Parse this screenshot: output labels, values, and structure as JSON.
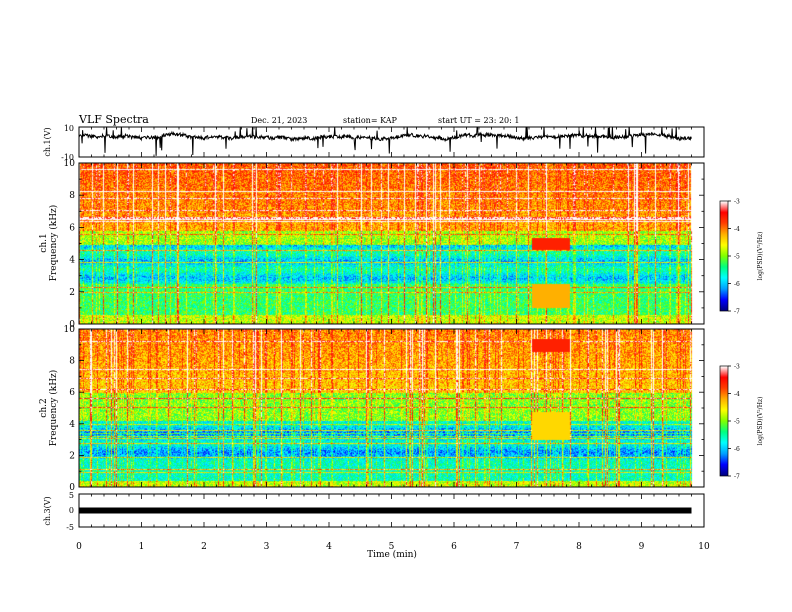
{
  "header": {
    "title": "VLF Spectra",
    "date": "Dec. 21, 2023",
    "station": "station= KAP",
    "start_time": "start  UT =   23: 20: 1"
  },
  "chart_data": [
    {
      "type": "line",
      "ylabel": "ch.1(V)",
      "ylim": [
        -10,
        10
      ],
      "yticks": [
        "10",
        "-10"
      ],
      "xlim": [
        0,
        10
      ],
      "x_extent_min": 9.8,
      "trace_level": 3.5
    },
    {
      "type": "heatmap",
      "ylabel_top": "ch.1",
      "ylabel": "Frequency (kHz)",
      "ylim": [
        0,
        10
      ],
      "yticks": [
        "0",
        "2",
        "4",
        "6",
        "8",
        "10"
      ],
      "xlim": [
        0,
        10
      ],
      "data_extent_min": 9.8,
      "disturbance_window_min": [
        7.25,
        7.85
      ]
    },
    {
      "type": "heatmap",
      "ylabel_top": "ch.2",
      "ylabel": "Frequency (kHz)",
      "ylim": [
        0,
        10
      ],
      "yticks": [
        "0",
        "2",
        "4",
        "6",
        "8",
        "10"
      ],
      "xlim": [
        0,
        10
      ],
      "data_extent_min": 9.8,
      "disturbance_window_min": [
        7.25,
        7.85
      ]
    },
    {
      "type": "line",
      "ylabel": "ch.3(V)",
      "ylim": [
        -5,
        5
      ],
      "yticks": [
        "5",
        "0",
        "-5"
      ],
      "xlim": [
        0,
        10
      ],
      "trace_level": 0
    }
  ],
  "xaxis": {
    "label": "Time (min)",
    "ticks": [
      "0",
      "1",
      "2",
      "3",
      "4",
      "5",
      "6",
      "7",
      "8",
      "9",
      "10"
    ]
  },
  "colorbars": [
    {
      "label": "log(PSD)(V²/Hz)",
      "ticks": [
        "-3",
        "-4",
        "-5",
        "-6",
        "-7"
      ],
      "range": [
        -7,
        -3
      ]
    },
    {
      "label": "log(PSD)(V²/Hz)",
      "ticks": [
        "-3",
        "-4",
        "-5",
        "-6",
        "-7"
      ],
      "range": [
        -7,
        -3
      ]
    }
  ],
  "colormap": [
    "#000080",
    "#0000ff",
    "#00a0ff",
    "#00ffff",
    "#00ff80",
    "#80ff00",
    "#ffff00",
    "#ffb000",
    "#ff4000",
    "#ff0000",
    "#ffffff"
  ]
}
